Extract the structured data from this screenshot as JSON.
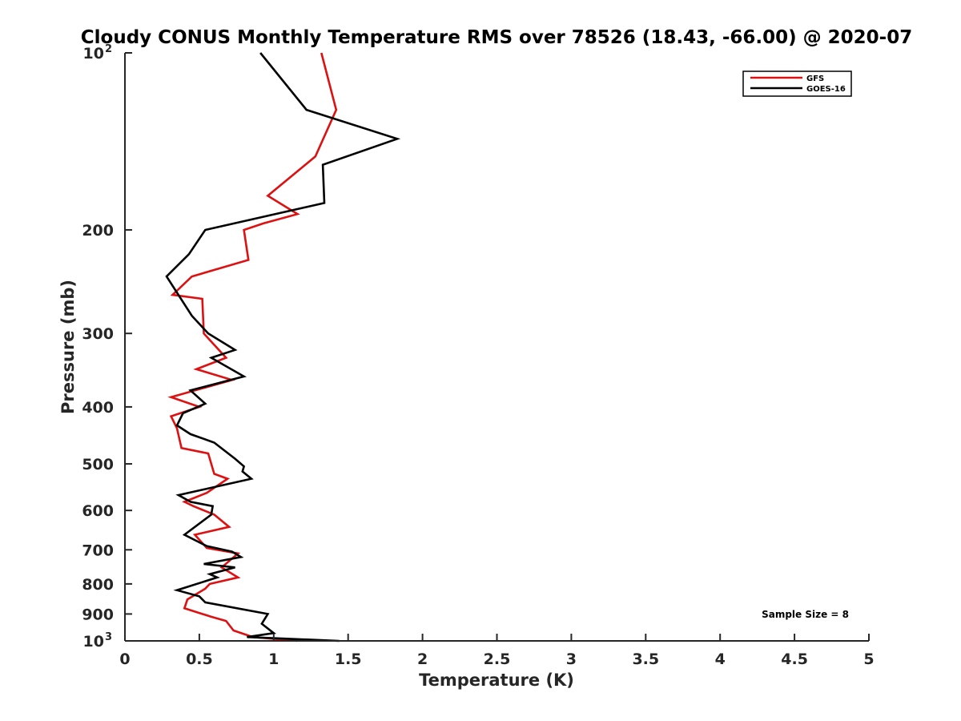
{
  "chart_data": {
    "type": "line",
    "title": "Cloudy CONUS Monthly Temperature RMS over 78526 (18.43, -66.00) @ 2020-07",
    "xlabel": "Temperature (K)",
    "ylabel": "Pressure (mb)",
    "xlim": [
      0,
      5
    ],
    "ylim": [
      100,
      1000
    ],
    "y_scale": "log",
    "y_reversed": true,
    "x_ticks": [
      "0",
      "0.5",
      "1",
      "1.5",
      "2",
      "2.5",
      "3",
      "3.5",
      "4",
      "4.5",
      "5"
    ],
    "y_ticks": [
      {
        "value": 100,
        "base": "10",
        "exp": "2"
      },
      {
        "value": 200,
        "label": "200"
      },
      {
        "value": 300,
        "label": "300"
      },
      {
        "value": 400,
        "label": "400"
      },
      {
        "value": 500,
        "label": "500"
      },
      {
        "value": 600,
        "label": "600"
      },
      {
        "value": 700,
        "label": "700"
      },
      {
        "value": 800,
        "label": "800"
      },
      {
        "value": 900,
        "label": "900"
      },
      {
        "value": 1000,
        "base": "10",
        "exp": "3"
      }
    ],
    "legend_position": "top-right",
    "series": [
      {
        "name": "GFS",
        "color": "#dd1111",
        "points": [
          [
            1.32,
            100
          ],
          [
            1.42,
            125
          ],
          [
            1.28,
            150
          ],
          [
            0.96,
            175
          ],
          [
            1.16,
            188
          ],
          [
            0.93,
            195
          ],
          [
            0.8,
            200
          ],
          [
            0.83,
            225
          ],
          [
            0.45,
            240
          ],
          [
            0.32,
            258
          ],
          [
            0.52,
            262
          ],
          [
            0.53,
            300
          ],
          [
            0.68,
            330
          ],
          [
            0.48,
            345
          ],
          [
            0.72,
            360
          ],
          [
            0.31,
            385
          ],
          [
            0.5,
            400
          ],
          [
            0.31,
            415
          ],
          [
            0.35,
            435
          ],
          [
            0.38,
            470
          ],
          [
            0.56,
            480
          ],
          [
            0.6,
            520
          ],
          [
            0.69,
            530
          ],
          [
            0.55,
            560
          ],
          [
            0.4,
            580
          ],
          [
            0.46,
            590
          ],
          [
            0.6,
            610
          ],
          [
            0.7,
            640
          ],
          [
            0.47,
            660
          ],
          [
            0.55,
            695
          ],
          [
            0.76,
            710
          ],
          [
            0.65,
            750
          ],
          [
            0.76,
            780
          ],
          [
            0.57,
            800
          ],
          [
            0.54,
            815
          ],
          [
            0.42,
            850
          ],
          [
            0.4,
            880
          ],
          [
            0.58,
            910
          ],
          [
            0.68,
            925
          ],
          [
            0.73,
            960
          ],
          [
            0.86,
            985
          ],
          [
            1.16,
            1000
          ]
        ]
      },
      {
        "name": "GOES-16",
        "color": "#000000",
        "points": [
          [
            0.91,
            100
          ],
          [
            1.22,
            125
          ],
          [
            1.83,
            140
          ],
          [
            1.33,
            155
          ],
          [
            1.34,
            180
          ],
          [
            0.54,
            200
          ],
          [
            0.43,
            220
          ],
          [
            0.28,
            240
          ],
          [
            0.45,
            280
          ],
          [
            0.56,
            300
          ],
          [
            0.74,
            320
          ],
          [
            0.58,
            330
          ],
          [
            0.8,
            355
          ],
          [
            0.44,
            375
          ],
          [
            0.54,
            395
          ],
          [
            0.39,
            410
          ],
          [
            0.35,
            430
          ],
          [
            0.44,
            445
          ],
          [
            0.6,
            460
          ],
          [
            0.74,
            490
          ],
          [
            0.8,
            505
          ],
          [
            0.79,
            515
          ],
          [
            0.85,
            530
          ],
          [
            0.36,
            565
          ],
          [
            0.44,
            580
          ],
          [
            0.59,
            590
          ],
          [
            0.58,
            610
          ],
          [
            0.4,
            660
          ],
          [
            0.55,
            690
          ],
          [
            0.72,
            705
          ],
          [
            0.78,
            720
          ],
          [
            0.53,
            740
          ],
          [
            0.74,
            750
          ],
          [
            0.57,
            770
          ],
          [
            0.62,
            780
          ],
          [
            0.35,
            820
          ],
          [
            0.5,
            840
          ],
          [
            0.54,
            860
          ],
          [
            0.96,
            900
          ],
          [
            0.92,
            935
          ],
          [
            1.0,
            970
          ],
          [
            0.82,
            985
          ],
          [
            1.44,
            1000
          ]
        ]
      }
    ],
    "annotations": [
      "Sample Size = 8"
    ]
  }
}
